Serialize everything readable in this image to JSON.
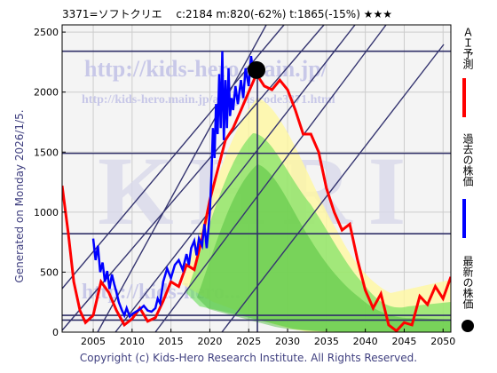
{
  "header": {
    "title": "3371=ソフトクリエ　 c:2184  m:820(-62%)  t:1865(-15%)  ★★★"
  },
  "side": {
    "generated": "Generated on Monday 2026/1/5."
  },
  "footer": {
    "copyright": "Copyright (c) Kids-Hero Research Institute. All Rights Reserved."
  },
  "watermarks": {
    "url1": "http://kids-hero.main.jp/",
    "url2": "http://kids-hero.main.jp/analysis/code3371.html",
    "big": "KHRI",
    "lower": "http://kids-hero..."
  },
  "legend": [
    {
      "label": "ＡＩ予測",
      "color": "#ff0000",
      "kind": "line"
    },
    {
      "label": "過去の株価",
      "color": "#0000ff",
      "kind": "line"
    },
    {
      "label": "最新の株価",
      "color": "#000000",
      "kind": "dot"
    }
  ],
  "colors": {
    "plot_bg": "#f4f4f4",
    "grid": "#cccccc",
    "price": "#0000ff",
    "forecast": "#ff0000",
    "band_green": "#66dd55",
    "band_yellow": "#fff8a0",
    "hline": "#303068"
  },
  "chart_data": {
    "type": "line",
    "xlim": [
      2001,
      2051
    ],
    "ylim": [
      0,
      2560
    ],
    "xticks": [
      2005,
      2010,
      2015,
      2020,
      2025,
      2030,
      2035,
      2040,
      2045,
      2050
    ],
    "yticks": [
      0,
      500,
      1000,
      1500,
      2000,
      2500
    ],
    "horizontal_lines": [
      2340,
      1490,
      820,
      140,
      100
    ],
    "latest_point": {
      "x": 2026.0,
      "y": 2184
    },
    "series": [
      {
        "x": [
          2005.0,
          2005.3,
          2005.6,
          2005.9,
          2006.2,
          2006.5,
          2006.8,
          2007.1,
          2007.4,
          2007.7,
          2008.0,
          2008.3,
          2008.7,
          2009.0,
          2009.3,
          2009.7,
          2010.0,
          2010.5,
          2011.0,
          2011.5,
          2012.0,
          2012.5,
          2013.0,
          2013.3,
          2013.6,
          2014.0,
          2014.5,
          2015.0,
          2015.5,
          2016.0,
          2016.5,
          2017.0,
          2017.3,
          2017.6,
          2018.0,
          2018.3,
          2018.6,
          2019.0,
          2019.3,
          2019.6,
          2019.8,
          2020.0,
          2020.2,
          2020.4,
          2020.6,
          2020.8,
          2021.0,
          2021.2,
          2021.4,
          2021.6,
          2021.8,
          2022.0,
          2022.2,
          2022.4,
          2022.6,
          2022.8,
          2023.0,
          2023.3,
          2023.6,
          2024.0,
          2024.3,
          2024.6,
          2025.0,
          2025.3,
          2025.6,
          2026.0
        ],
        "y": [
          780,
          600,
          720,
          500,
          580,
          420,
          510,
          360,
          480,
          400,
          330,
          250,
          180,
          140,
          200,
          130,
          150,
          170,
          190,
          220,
          180,
          170,
          200,
          280,
          240,
          420,
          530,
          450,
          560,
          600,
          520,
          650,
          560,
          700,
          760,
          640,
          780,
          720,
          900,
          700,
          850,
          1000,
          1300,
          1700,
          1450,
          1900,
          1650,
          2150,
          1700,
          2340,
          1600,
          2100,
          1700,
          2200,
          1800,
          1950,
          1850,
          2050,
          1900,
          2100,
          1950,
          2200,
          2050,
          2300,
          2150,
          2184
        ]
      },
      {
        "x": [
          2001.0,
          2001.8,
          2002.5,
          2003.3,
          2004.0,
          2005.0,
          2006.0,
          2007.0,
          2008.0,
          2009.0,
          2010.0,
          2011.0,
          2012.0,
          2013.0,
          2014.0,
          2015.0,
          2016.0,
          2017.0,
          2018.0,
          2019.0,
          2020.0,
          2021.0,
          2022.0,
          2023.0,
          2024.0,
          2025.0,
          2026.0,
          2027.0,
          2028.0,
          2029.0,
          2030.0,
          2031.0,
          2032.0,
          2033.0,
          2034.0,
          2035.0,
          2036.0,
          2037.0,
          2038.0,
          2039.0,
          2040.0,
          2041.0,
          2042.0,
          2043.0,
          2044.0,
          2045.0,
          2046.0,
          2047.0,
          2048.0,
          2049.0,
          2050.0,
          2051.0
        ],
        "y": [
          1220,
          820,
          420,
          180,
          80,
          140,
          420,
          330,
          180,
          60,
          110,
          200,
          90,
          120,
          260,
          420,
          380,
          560,
          520,
          780,
          1100,
          1350,
          1600,
          1700,
          1850,
          2000,
          2150,
          2050,
          2020,
          2100,
          2020,
          1850,
          1650,
          1650,
          1500,
          1200,
          1000,
          850,
          900,
          600,
          350,
          200,
          320,
          60,
          10,
          80,
          60,
          300,
          230,
          380,
          280,
          460
        ]
      }
    ]
  }
}
